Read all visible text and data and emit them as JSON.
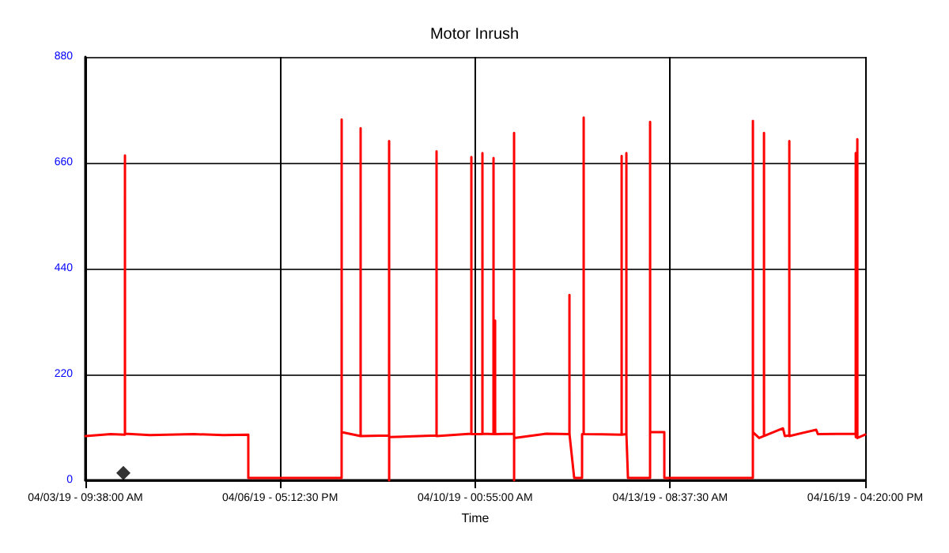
{
  "chart_data": {
    "type": "line",
    "title": "Motor Inrush",
    "xlabel": "Time",
    "grid": true,
    "xlim": [
      "--04-03T09:38",
      "--04-16T16:20"
    ],
    "xticks": [
      {
        "value": "--04-03T09:38",
        "label": "04/03/19 - 09:38:00 AM"
      },
      {
        "value": "--04-06T17:12",
        "label": "04/06/19 - 05:12:30 PM"
      },
      {
        "value": "--04-10T00:55",
        "label": "04/10/19 - 00:55:00 AM"
      },
      {
        "value": "--04-13T08:37",
        "label": "04/13/19 - 08:37:30 AM"
      },
      {
        "value": "--04-16T16:20",
        "label": "04/16/19 - 04:20:00 PM"
      }
    ],
    "ylim": [
      0,
      880
    ],
    "yticks": [
      0,
      220,
      440,
      660,
      880
    ],
    "series": [
      {
        "color": "#ff0000",
        "marker": "none",
        "line_style": "solid",
        "x": [
          "--04-03T09:38",
          "--04-03T20:00",
          "--04-04T01:47",
          "--04-04T01:48",
          "--04-04T01:49",
          "--04-04T12:00",
          "--04-05T06:00",
          "--04-05T18:00",
          "--04-06T04:12",
          "--04-06T04:13",
          "--04-07T18:21",
          "--04-07T18:22",
          "--04-07T18:23",
          "--04-08T02:06",
          "--04-08T02:07",
          "--04-08T02:08",
          "--04-08T13:45",
          "--04-08T13:46",
          "--04-08T13:47",
          "--04-08T13:48",
          "--04-09T09:08",
          "--04-09T09:09",
          "--04-09T09:10",
          "--04-09T23:22",
          "--04-09T23:23",
          "--04-09T23:24",
          "--04-10T03:53",
          "--04-10T03:54",
          "--04-10T03:55",
          "--04-10T08:25",
          "--04-10T08:26",
          "--04-10T08:27",
          "--04-10T09:04",
          "--04-10T09:05",
          "--04-10T09:06",
          "--04-10T16:49",
          "--04-10T16:50",
          "--04-10T16:51",
          "--04-10T16:52",
          "--04-11T06:00",
          "--04-11T15:27",
          "--04-11T15:28",
          "--04-11T15:29",
          "--04-11T17:24",
          "--04-11T20:37",
          "--04-11T20:38",
          "--04-11T21:16",
          "--04-11T21:17",
          "--04-11T21:18",
          "--04-12T12:47",
          "--04-12T12:48",
          "--04-12T12:49",
          "--04-12T14:43",
          "--04-12T14:44",
          "--04-12T14:45",
          "--04-12T15:23",
          "--04-13T00:25",
          "--04-13T00:26",
          "--04-13T00:27",
          "--04-13T06:14",
          "--04-13T06:15",
          "--04-14T18:26",
          "--04-14T18:27",
          "--04-14T18:28",
          "--04-14T21:00",
          "--04-14T22:58",
          "--04-14T22:59",
          "--04-14T23:00",
          "--04-15T06:44",
          "--04-15T07:30",
          "--04-15T09:19",
          "--04-15T09:20",
          "--04-15T09:21",
          "--04-15T20:19",
          "--04-15T21:00",
          "--04-16T12:28",
          "--04-16T12:29",
          "--04-16T12:30",
          "--04-16T13:08",
          "--04-16T13:09",
          "--04-16T16:20"
        ],
        "values": [
          92,
          96,
          95,
          675,
          97,
          94,
          96,
          94,
          95,
          5,
          5,
          750,
          100,
          92,
          732,
          92,
          93,
          705,
          0,
          90,
          93,
          684,
          92,
          97,
          672,
          96,
          96,
          680,
          97,
          96,
          670,
          96,
          96,
          332,
          96,
          97,
          722,
          0,
          88,
          97,
          96,
          385,
          96,
          5,
          5,
          96,
          96,
          754,
          96,
          95,
          674,
          95,
          96,
          680,
          96,
          5,
          5,
          745,
          100,
          100,
          5,
          5,
          747,
          100,
          88,
          92,
          722,
          92,
          108,
          92,
          93,
          705,
          92,
          105,
          96,
          97,
          680,
          90,
          709,
          88,
          95
        ]
      },
      {
        "type": "scatter",
        "color": "#000000",
        "marker": "diamond",
        "x": [
          "--04-04T01:09"
        ],
        "values": [
          15
        ]
      }
    ]
  }
}
